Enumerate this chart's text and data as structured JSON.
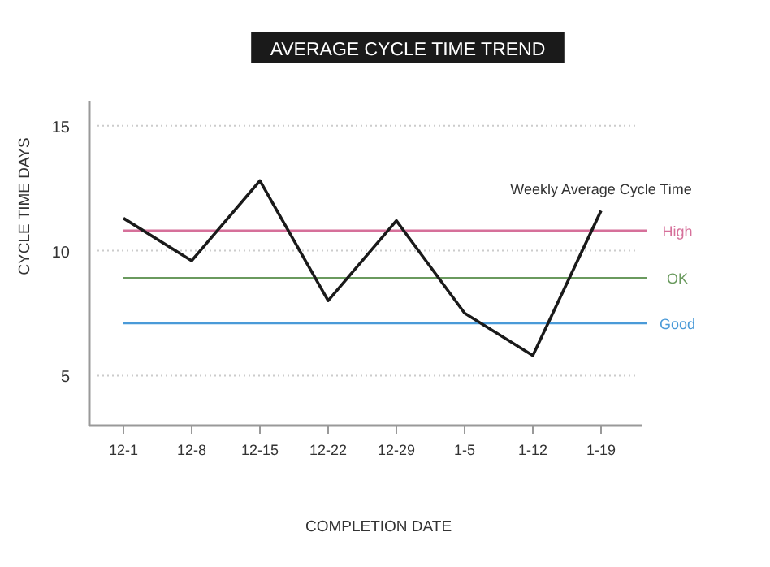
{
  "chart_data": {
    "type": "line",
    "title": "AVERAGE CYCLE TIME TREND",
    "xlabel": "COMPLETION DATE",
    "ylabel": "CYCLE TIME DAYS",
    "categories": [
      "12-1",
      "12-8",
      "12-15",
      "12-22",
      "12-29",
      "1-5",
      "1-12",
      "1-19"
    ],
    "series": [
      {
        "name": "Weekly Average Cycle Time",
        "color": "#1a1a1a",
        "values": [
          11.3,
          9.6,
          12.8,
          8.0,
          11.2,
          7.5,
          5.8,
          11.6
        ]
      }
    ],
    "ylim": [
      3,
      16
    ],
    "yticks": [
      5,
      10,
      15
    ],
    "grid": "y",
    "marker": "none",
    "line_style": "solid",
    "legend": false,
    "ref_lines": [
      {
        "axis": "y",
        "value": 10.8,
        "label": "High",
        "color": "#d6709a"
      },
      {
        "axis": "y",
        "value": 8.9,
        "label": "OK",
        "color": "#6a9a5e"
      },
      {
        "axis": "y",
        "value": 7.1,
        "label": "Good",
        "color": "#4a9ad8"
      }
    ]
  }
}
